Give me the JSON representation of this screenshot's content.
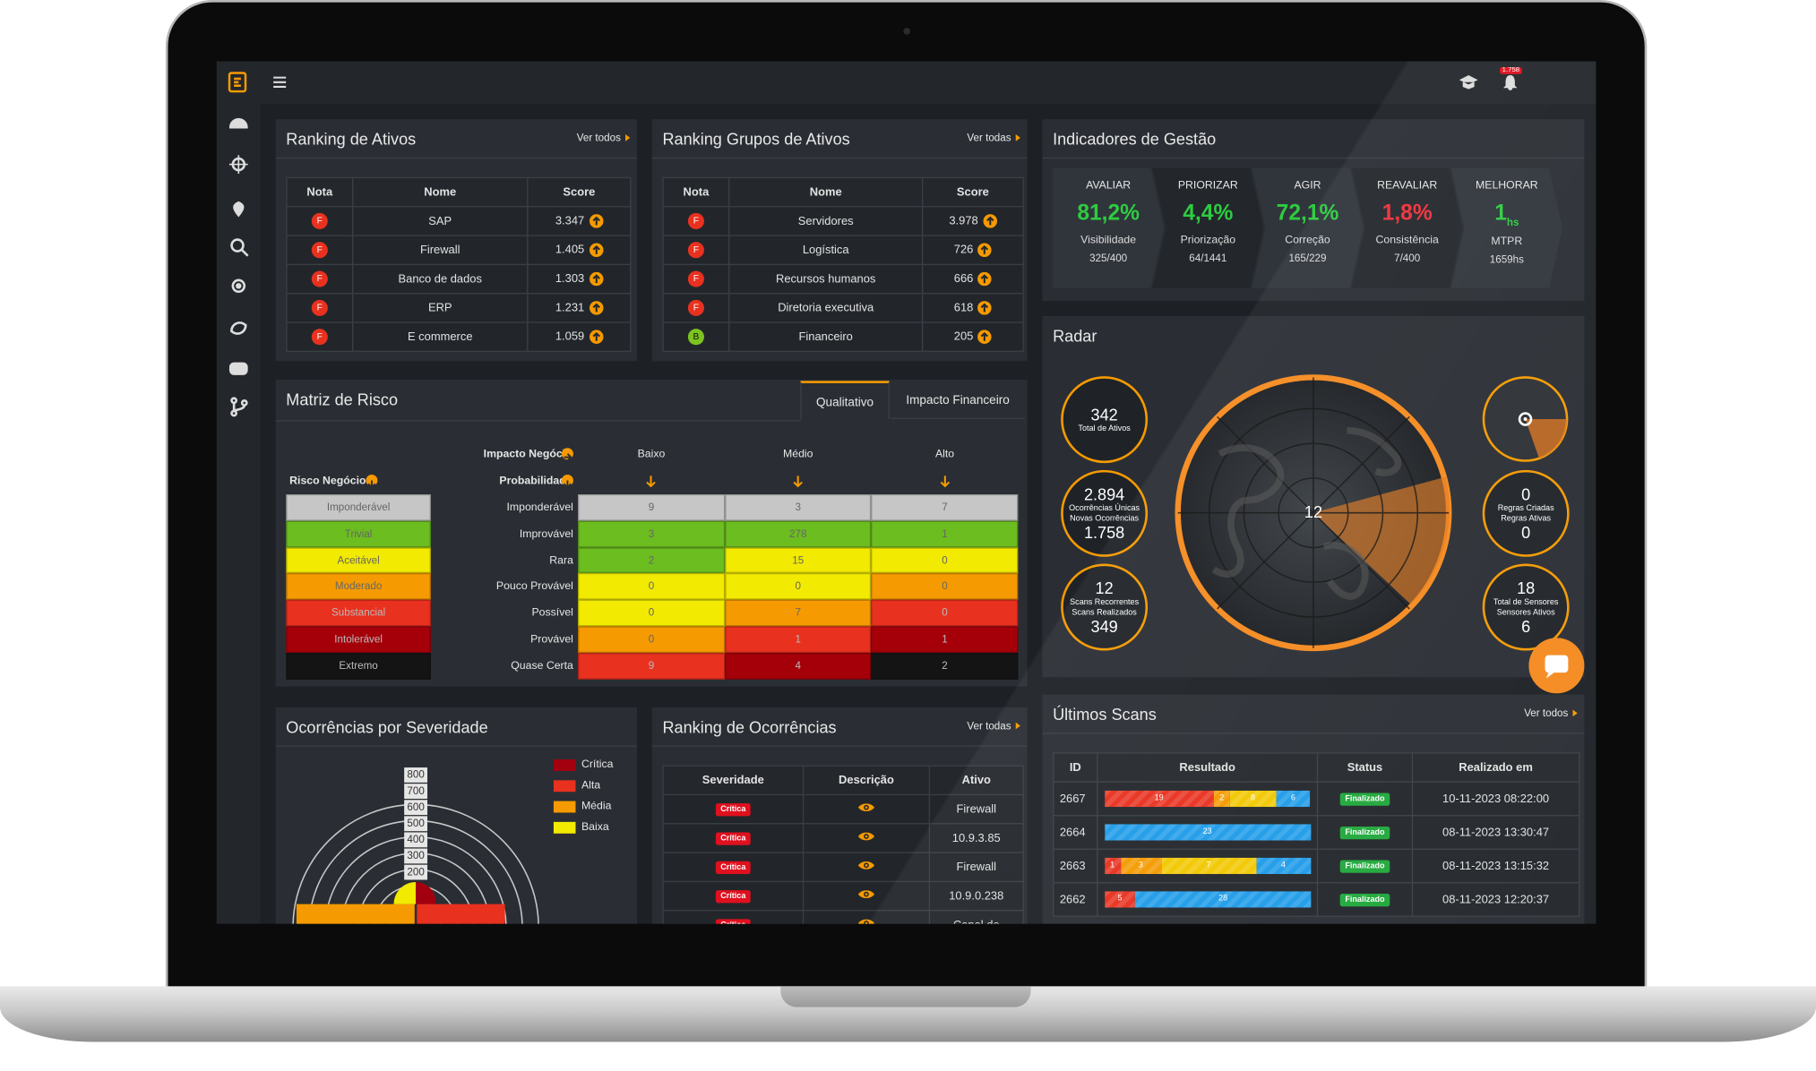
{
  "topbar": {
    "notification_badge": "1.758"
  },
  "ranking_ativos": {
    "title": "Ranking de Ativos",
    "link": "Ver todos",
    "columns": [
      "Nota",
      "Nome",
      "Score"
    ],
    "rows": [
      {
        "grade": "F",
        "grade_color": "#e8311f",
        "name": "SAP",
        "score": "3.347"
      },
      {
        "grade": "F",
        "grade_color": "#e8311f",
        "name": "Firewall",
        "score": "1.405"
      },
      {
        "grade": "F",
        "grade_color": "#e8311f",
        "name": "Banco de dados",
        "score": "1.303"
      },
      {
        "grade": "F",
        "grade_color": "#e8311f",
        "name": "ERP",
        "score": "1.231"
      },
      {
        "grade": "F",
        "grade_color": "#e8311f",
        "name": "E commerce",
        "score": "1.059"
      }
    ]
  },
  "ranking_grupos": {
    "title": "Ranking Grupos de Ativos",
    "link": "Ver todas",
    "columns": [
      "Nota",
      "Nome",
      "Score"
    ],
    "rows": [
      {
        "grade": "F",
        "grade_color": "#e8311f",
        "name": "Servidores",
        "score": "3.978"
      },
      {
        "grade": "F",
        "grade_color": "#e8311f",
        "name": "Logística",
        "score": "726"
      },
      {
        "grade": "F",
        "grade_color": "#e8311f",
        "name": "Recursos humanos",
        "score": "666"
      },
      {
        "grade": "F",
        "grade_color": "#e8311f",
        "name": "Diretoria executiva",
        "score": "618"
      },
      {
        "grade": "B",
        "grade_color": "#7cc31f",
        "name": "Financeiro",
        "score": "205"
      }
    ]
  },
  "indicadores": {
    "title": "Indicadores de Gestão",
    "steps": [
      {
        "label": "AVALIAR",
        "value": "81,2%",
        "color": "#2ecc40",
        "metric": "Visibilidade",
        "detail": "325/400"
      },
      {
        "label": "PRIORIZAR",
        "value": "4,4%",
        "color": "#2ecc40",
        "metric": "Priorização",
        "detail": "64/1441"
      },
      {
        "label": "AGIR",
        "value": "72,1%",
        "color": "#2ecc40",
        "metric": "Correção",
        "detail": "165/229"
      },
      {
        "label": "REAVALIAR",
        "value": "1,8%",
        "color": "#f0303a",
        "metric": "Consistência",
        "detail": "7/400"
      },
      {
        "label": "MELHORAR",
        "value": "1",
        "unit": "hs",
        "color": "#2ecc40",
        "metric": "MTPR",
        "detail": "1659hs"
      }
    ]
  },
  "matriz": {
    "title": "Matriz de Risco",
    "tabs": [
      "Qualitativo",
      "Impacto Financeiro"
    ],
    "impact_label": "Impacto Negócio",
    "probability_label": "Probabilidade",
    "risk_label": "Risco Negócio",
    "impact_levels": [
      "Baixo",
      "Médio",
      "Alto"
    ],
    "risk_levels": [
      {
        "label": "Imponderável",
        "color": "#c6c6c6"
      },
      {
        "label": "Trivial",
        "color": "#6cbd1f"
      },
      {
        "label": "Aceitável",
        "color": "#f2ea00"
      },
      {
        "label": "Moderado",
        "color": "#f59a00"
      },
      {
        "label": "Substancial",
        "color": "#e8311f"
      },
      {
        "label": "Intolerável",
        "color": "#a5000a"
      },
      {
        "label": "Extremo",
        "color": "#141414"
      }
    ],
    "rows": [
      {
        "label": "Imponderável",
        "cells": [
          {
            "value": "9",
            "color": "#c6c6c6"
          },
          {
            "value": "3",
            "color": "#c6c6c6"
          },
          {
            "value": "7",
            "color": "#c6c6c6"
          }
        ]
      },
      {
        "label": "Improvável",
        "cells": [
          {
            "value": "3",
            "color": "#6cbd1f"
          },
          {
            "value": "278",
            "color": "#6cbd1f"
          },
          {
            "value": "1",
            "color": "#6cbd1f"
          }
        ]
      },
      {
        "label": "Rara",
        "cells": [
          {
            "value": "2",
            "color": "#6cbd1f"
          },
          {
            "value": "15",
            "color": "#f2ea00"
          },
          {
            "value": "0",
            "color": "#f2ea00"
          }
        ]
      },
      {
        "label": "Pouco Provável",
        "cells": [
          {
            "value": "0",
            "color": "#f2ea00"
          },
          {
            "value": "0",
            "color": "#f2ea00"
          },
          {
            "value": "0",
            "color": "#f59a00"
          }
        ]
      },
      {
        "label": "Possível",
        "cells": [
          {
            "value": "0",
            "color": "#f2ea00"
          },
          {
            "value": "7",
            "color": "#f59a00"
          },
          {
            "value": "0",
            "color": "#e8311f"
          }
        ]
      },
      {
        "label": "Provável",
        "cells": [
          {
            "value": "0",
            "color": "#f59a00"
          },
          {
            "value": "1",
            "color": "#e8311f"
          },
          {
            "value": "1",
            "color": "#a5000a"
          }
        ]
      },
      {
        "label": "Quase Certa",
        "cells": [
          {
            "value": "9",
            "color": "#e8311f"
          },
          {
            "value": "4",
            "color": "#a5000a"
          },
          {
            "value": "2",
            "color": "#141414"
          }
        ]
      }
    ]
  },
  "radar": {
    "title": "Radar",
    "center": "12",
    "left": [
      {
        "value": "342",
        "label": "Total de Ativos"
      },
      {
        "value": "2.894",
        "label": "Ocorrências Únicas",
        "label2": "Novas Ocorrências",
        "value2": "1.758"
      },
      {
        "value": "12",
        "label": "Scans Recorrentes",
        "label2": "Scans Realizados",
        "value2": "349"
      }
    ],
    "right": [
      {
        "value": "0",
        "label": "Regras Criadas",
        "label2": "Regras Ativas",
        "value2": "0"
      },
      {
        "value": "18",
        "label": "Total de Sensores",
        "label2": "Sensores Ativos",
        "value2": "6"
      }
    ]
  },
  "severidade": {
    "title": "Ocorrências por Severidade",
    "legend": [
      {
        "label": "Crítica",
        "color": "#a3000f"
      },
      {
        "label": "Alta",
        "color": "#e8311f"
      },
      {
        "label": "Média",
        "color": "#f59a00"
      },
      {
        "label": "Baixa",
        "color": "#f2ea00"
      }
    ],
    "scale": [
      "800",
      "700",
      "600",
      "500",
      "400",
      "300",
      "200"
    ]
  },
  "ranking_ocorrencias": {
    "title": "Ranking de Ocorrências",
    "link": "Ver todas",
    "columns": [
      "Severidade",
      "Descrição",
      "Ativo"
    ],
    "rows": [
      {
        "severity": "Crítica",
        "asset": "Firewall"
      },
      {
        "severity": "Crítica",
        "asset": "10.9.3.85"
      },
      {
        "severity": "Crítica",
        "asset": "Firewall"
      },
      {
        "severity": "Crítica",
        "asset": "10.9.0.238"
      },
      {
        "severity": "Crítica",
        "asset": "Canal de"
      }
    ]
  },
  "ultimos_scans": {
    "title": "Últimos Scans",
    "link": "Ver todos",
    "columns": [
      "ID",
      "Resultado",
      "Status",
      "Realizado em"
    ],
    "rows": [
      {
        "id": "2667",
        "result": [
          {
            "value": 19,
            "color": "#e8311f"
          },
          {
            "value": 2,
            "color": "#f59a00"
          },
          {
            "value": 8,
            "color": "#f2c800"
          },
          {
            "value": 6,
            "color": "#1e9be8"
          }
        ],
        "status": "Finalizado",
        "date": "10-11-2023 08:22:00"
      },
      {
        "id": "2664",
        "result": [
          {
            "value": 23,
            "color": "#1e9be8"
          }
        ],
        "status": "Finalizado",
        "date": "08-11-2023 13:30:47"
      },
      {
        "id": "2663",
        "result": [
          {
            "value": 1,
            "color": "#e8311f"
          },
          {
            "value": 3,
            "color": "#f59a00"
          },
          {
            "value": 7,
            "color": "#f2c800"
          },
          {
            "value": 4,
            "color": "#1e9be8"
          }
        ],
        "status": "Finalizado",
        "date": "08-11-2023 13:15:32"
      },
      {
        "id": "2662",
        "result": [
          {
            "value": 5,
            "color": "#e8311f"
          },
          {
            "value": 28,
            "color": "#1e9be8"
          }
        ],
        "status": "Finalizado",
        "date": "08-11-2023 12:20:37"
      }
    ]
  }
}
